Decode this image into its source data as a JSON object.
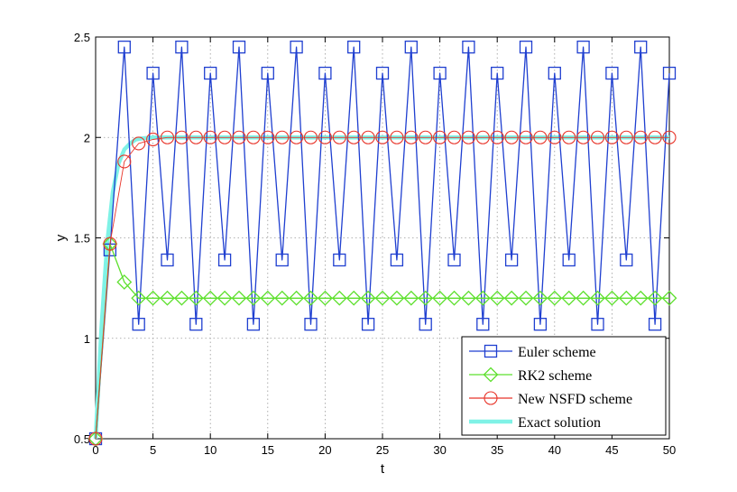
{
  "chart_data": {
    "type": "line",
    "title": "",
    "xlabel": "t",
    "ylabel": "y",
    "xlim": [
      0,
      50
    ],
    "ylim": [
      0.5,
      2.5
    ],
    "xticks": [
      0,
      5,
      10,
      15,
      20,
      25,
      30,
      35,
      40,
      45,
      50
    ],
    "yticks": [
      0.5,
      1,
      1.5,
      2,
      2.5
    ],
    "xtick_labels": [
      "0",
      "5",
      "10",
      "15",
      "20",
      "25",
      "30",
      "35",
      "40",
      "45",
      "50"
    ],
    "ytick_labels": [
      "0.5",
      "1",
      "1.5",
      "2",
      "2.5"
    ],
    "grid": true,
    "legend_position": "bottom-right",
    "series": [
      {
        "name": "Euler scheme",
        "color": "#1f3fd0",
        "marker": "square",
        "x": [
          0,
          1.25,
          2.5,
          3.75,
          5,
          6.25,
          7.5,
          8.75,
          10,
          11.25,
          12.5,
          13.75,
          15,
          16.25,
          17.5,
          18.75,
          20,
          21.25,
          22.5,
          23.75,
          25,
          26.25,
          27.5,
          28.75,
          30,
          31.25,
          32.5,
          33.75,
          35,
          36.25,
          37.5,
          38.75,
          40,
          41.25,
          42.5,
          43.75,
          45,
          46.25,
          47.5,
          48.75,
          50
        ],
        "y": [
          0.5,
          1.44,
          2.45,
          1.07,
          2.32,
          1.39,
          2.45,
          1.07,
          2.32,
          1.39,
          2.45,
          1.07,
          2.32,
          1.39,
          2.45,
          1.07,
          2.32,
          1.39,
          2.45,
          1.07,
          2.32,
          1.39,
          2.45,
          1.07,
          2.32,
          1.39,
          2.45,
          1.07,
          2.32,
          1.39,
          2.45,
          1.07,
          2.32,
          1.39,
          2.45,
          1.07,
          2.32,
          1.39,
          2.45,
          1.07,
          2.32
        ]
      },
      {
        "name": "RK2 scheme",
        "color": "#5ee02e",
        "marker": "diamond",
        "x": [
          0,
          1.25,
          2.5,
          3.75,
          5,
          6.25,
          7.5,
          8.75,
          10,
          11.25,
          12.5,
          13.75,
          15,
          16.25,
          17.5,
          18.75,
          20,
          21.25,
          22.5,
          23.75,
          25,
          26.25,
          27.5,
          28.75,
          30,
          31.25,
          32.5,
          33.75,
          35,
          36.25,
          37.5,
          38.75,
          40,
          41.25,
          42.5,
          43.75,
          45,
          46.25,
          47.5,
          48.75,
          50
        ],
        "y": [
          0.5,
          1.47,
          1.28,
          1.2,
          1.2,
          1.2,
          1.2,
          1.2,
          1.2,
          1.2,
          1.2,
          1.2,
          1.2,
          1.2,
          1.2,
          1.2,
          1.2,
          1.2,
          1.2,
          1.2,
          1.2,
          1.2,
          1.2,
          1.2,
          1.2,
          1.2,
          1.2,
          1.2,
          1.2,
          1.2,
          1.2,
          1.2,
          1.2,
          1.2,
          1.2,
          1.2,
          1.2,
          1.2,
          1.2,
          1.2,
          1.2
        ]
      },
      {
        "name": "New NSFD scheme",
        "color": "#e8352a",
        "marker": "circle",
        "x": [
          0,
          1.25,
          2.5,
          3.75,
          5,
          6.25,
          7.5,
          8.75,
          10,
          11.25,
          12.5,
          13.75,
          15,
          16.25,
          17.5,
          18.75,
          20,
          21.25,
          22.5,
          23.75,
          25,
          26.25,
          27.5,
          28.75,
          30,
          31.25,
          32.5,
          33.75,
          35,
          36.25,
          37.5,
          38.75,
          40,
          41.25,
          42.5,
          43.75,
          45,
          46.25,
          47.5,
          48.75,
          50
        ],
        "y": [
          0.5,
          1.47,
          1.88,
          1.97,
          1.99,
          2,
          2,
          2,
          2,
          2,
          2,
          2,
          2,
          2,
          2,
          2,
          2,
          2,
          2,
          2,
          2,
          2,
          2,
          2,
          2,
          2,
          2,
          2,
          2,
          2,
          2,
          2,
          2,
          2,
          2,
          2,
          2,
          2,
          2,
          2,
          2
        ]
      },
      {
        "name": "Exact solution",
        "color": "#7ff2e6",
        "marker": "none",
        "x": [
          0,
          0.5,
          1,
          1.5,
          2,
          2.5,
          3,
          3.5,
          4,
          5,
          6,
          8,
          10,
          15,
          20,
          25,
          30,
          35,
          40,
          45,
          50
        ],
        "y": [
          0.5,
          1.05,
          1.47,
          1.73,
          1.87,
          1.94,
          1.97,
          1.99,
          1.995,
          2,
          2,
          2,
          2,
          2,
          2,
          2,
          2,
          2,
          2,
          2,
          2
        ]
      }
    ]
  }
}
